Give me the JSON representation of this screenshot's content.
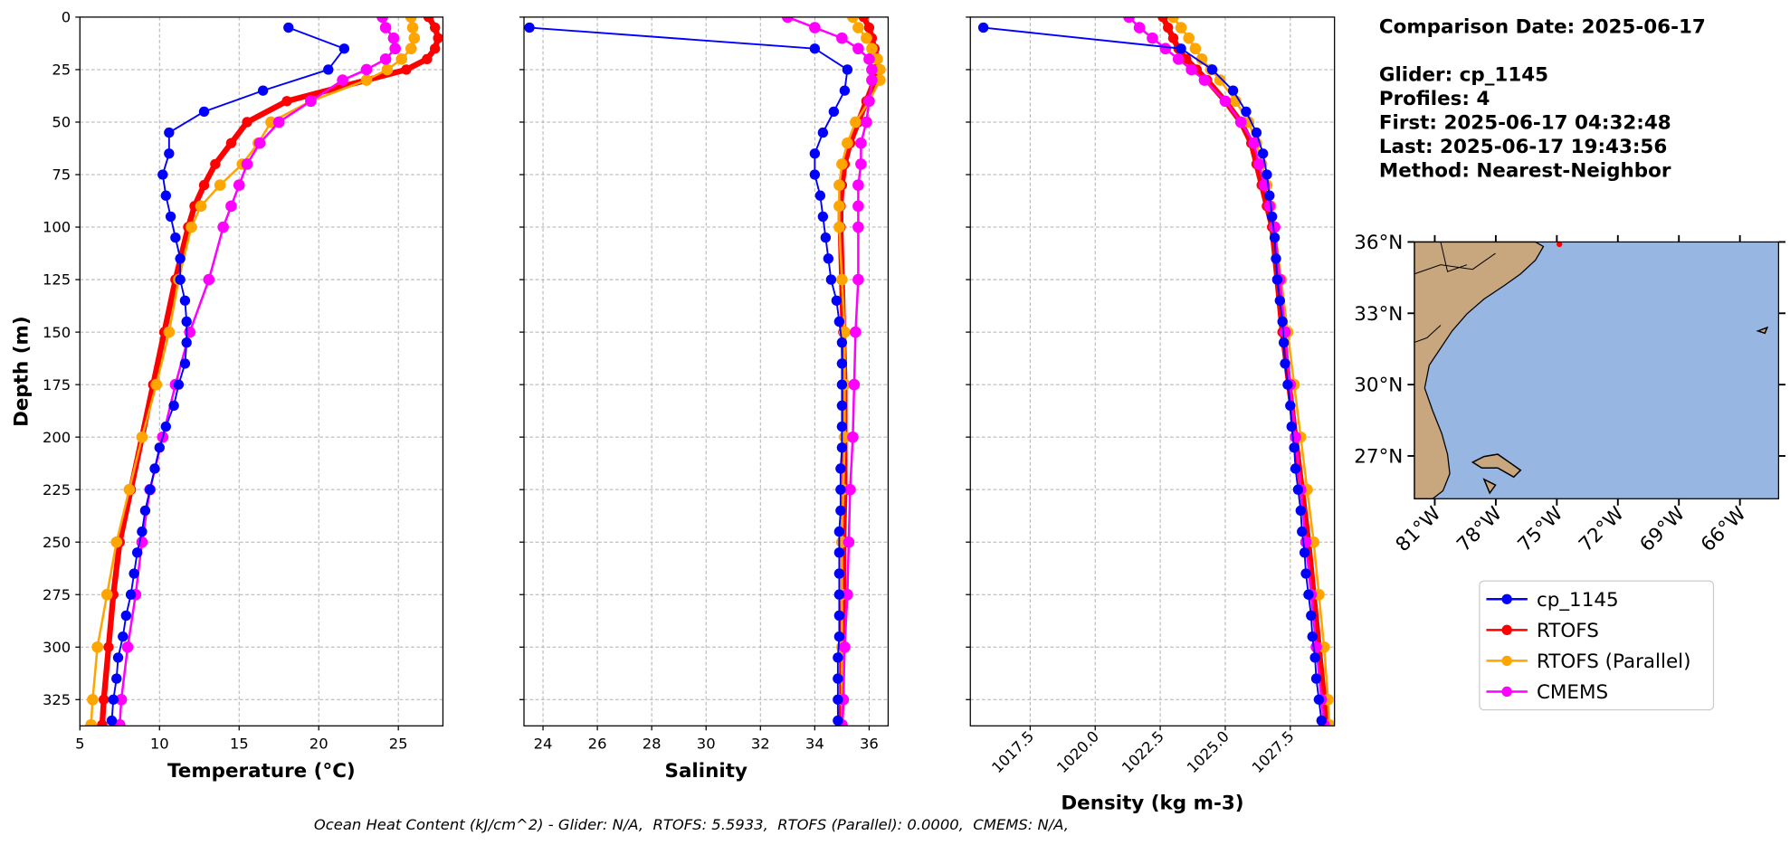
{
  "chart_data": [
    {
      "type": "line",
      "xlabel": "Temperature (°C)",
      "ylabel": "Depth (m)",
      "xlim": [
        5,
        27.8
      ],
      "xticks": [
        5,
        10,
        15,
        20,
        25
      ],
      "ylim": [
        337.5,
        0
      ],
      "yticks": [
        0,
        25,
        50,
        75,
        100,
        125,
        150,
        175,
        200,
        225,
        250,
        275,
        300,
        325
      ],
      "grid": true,
      "series": [
        {
          "name": "cp_1145",
          "color": "#0000ff",
          "depths": [
            5,
            15,
            25,
            35,
            45,
            55,
            65,
            75,
            85,
            95,
            105,
            115,
            125,
            135,
            145,
            155,
            165,
            175,
            185,
            195,
            205,
            215,
            225,
            235,
            245,
            255,
            265,
            275,
            285,
            295,
            305,
            315,
            325,
            335
          ],
          "values": [
            18.1,
            21.6,
            20.6,
            16.5,
            12.8,
            10.6,
            10.6,
            10.2,
            10.4,
            10.7,
            11.0,
            11.3,
            11.3,
            11.6,
            11.7,
            11.7,
            11.6,
            11.2,
            10.9,
            10.4,
            10.0,
            9.7,
            9.4,
            9.1,
            8.9,
            8.6,
            8.4,
            8.2,
            7.9,
            7.7,
            7.4,
            7.3,
            7.1,
            7.0
          ]
        },
        {
          "name": "RTOFS",
          "color": "#ff0000",
          "depths": [
            0,
            5,
            10,
            15,
            20,
            25,
            30,
            40,
            50,
            60,
            70,
            80,
            90,
            100,
            125,
            150,
            175,
            200,
            225,
            250,
            275,
            300,
            325,
            337
          ],
          "values": [
            26.9,
            27.3,
            27.5,
            27.3,
            26.8,
            25.5,
            23.0,
            18.0,
            15.5,
            14.5,
            13.5,
            12.8,
            12.2,
            11.8,
            11.0,
            10.3,
            9.6,
            8.9,
            8.2,
            7.5,
            7.1,
            6.8,
            6.5,
            6.4
          ]
        },
        {
          "name": "RTOFS (Parallel)",
          "color": "#ffa500",
          "depths": [
            0,
            5,
            10,
            15,
            20,
            25,
            30,
            40,
            50,
            60,
            70,
            80,
            90,
            100,
            125,
            150,
            175,
            200,
            225,
            250,
            275,
            300,
            325,
            337
          ],
          "values": [
            25.8,
            25.9,
            26.0,
            25.8,
            25.2,
            24.3,
            23.0,
            19.5,
            17.0,
            16.2,
            15.2,
            13.8,
            12.6,
            12.0,
            11.2,
            10.6,
            9.8,
            8.9,
            8.1,
            7.3,
            6.7,
            6.1,
            5.8,
            5.7
          ]
        },
        {
          "name": "CMEMS",
          "color": "#ff00ff",
          "depths": [
            0,
            5,
            10,
            15,
            20,
            25,
            30,
            40,
            50,
            60,
            70,
            80,
            90,
            100,
            125,
            150,
            175,
            200,
            225,
            250,
            275,
            300,
            325,
            337
          ],
          "values": [
            24.0,
            24.2,
            24.7,
            24.8,
            24.2,
            23.0,
            21.5,
            19.5,
            17.5,
            16.3,
            15.5,
            15.0,
            14.5,
            14.0,
            13.1,
            11.9,
            11.0,
            10.2,
            9.4,
            8.9,
            8.5,
            8.0,
            7.6,
            7.5
          ]
        }
      ]
    },
    {
      "type": "line",
      "xlabel": "Salinity",
      "xlim": [
        23.3,
        36.7
      ],
      "xticks": [
        24,
        26,
        28,
        30,
        32,
        34,
        36
      ],
      "series": [
        {
          "color": "#0000ff",
          "depths": [
            5,
            15,
            25,
            35,
            45,
            55,
            65,
            75,
            85,
            95,
            105,
            115,
            125,
            135,
            145,
            155,
            165,
            175,
            185,
            195,
            205,
            215,
            225,
            235,
            245,
            255,
            265,
            275,
            285,
            295,
            305,
            315,
            325,
            335
          ],
          "values": [
            23.5,
            34.0,
            35.2,
            35.1,
            34.7,
            34.3,
            34.0,
            34.0,
            34.2,
            34.3,
            34.4,
            34.5,
            34.6,
            34.8,
            34.9,
            35.0,
            35.0,
            35.0,
            35.0,
            35.0,
            35.0,
            34.95,
            34.95,
            34.95,
            34.9,
            34.9,
            34.9,
            34.9,
            34.9,
            34.9,
            34.85,
            34.85,
            34.85,
            34.85
          ]
        },
        {
          "color": "#ff0000",
          "depths": [
            0,
            5,
            10,
            15,
            20,
            25,
            30,
            40,
            50,
            60,
            70,
            80,
            90,
            100,
            125,
            150,
            175,
            200,
            225,
            250,
            275,
            300,
            325,
            337
          ],
          "values": [
            35.8,
            36.0,
            36.1,
            36.2,
            36.3,
            36.3,
            36.2,
            35.9,
            35.6,
            35.3,
            35.1,
            35.0,
            34.95,
            34.95,
            35.0,
            35.05,
            35.1,
            35.1,
            35.1,
            35.05,
            35.05,
            35.0,
            35.0,
            34.95
          ]
        },
        {
          "color": "#ffa500",
          "depths": [
            0,
            5,
            10,
            15,
            20,
            25,
            30,
            40,
            50,
            60,
            70,
            80,
            90,
            100,
            125,
            150,
            175,
            200,
            225,
            250,
            275,
            300,
            325,
            337
          ],
          "values": [
            35.4,
            35.6,
            35.9,
            36.1,
            36.3,
            36.4,
            36.4,
            36.0,
            35.5,
            35.2,
            35.0,
            34.9,
            34.9,
            34.9,
            35.0,
            35.1,
            35.1,
            35.1,
            35.05,
            35.0,
            35.0,
            35.0,
            35.0,
            35.0
          ]
        },
        {
          "color": "#ff00ff",
          "depths": [
            0,
            5,
            10,
            15,
            20,
            25,
            30,
            40,
            50,
            60,
            70,
            80,
            90,
            100,
            125,
            150,
            175,
            200,
            225,
            250,
            275,
            300,
            325,
            337
          ],
          "values": [
            33.0,
            34.0,
            35.0,
            35.6,
            36.0,
            36.1,
            36.1,
            36.0,
            35.9,
            35.7,
            35.7,
            35.6,
            35.6,
            35.6,
            35.6,
            35.5,
            35.45,
            35.4,
            35.3,
            35.25,
            35.2,
            35.1,
            35.05,
            35.0
          ]
        }
      ]
    },
    {
      "type": "line",
      "xlabel": "Density (kg m-3)",
      "xlim": [
        1015.2,
        1029.2
      ],
      "xticks": [
        1017.5,
        {
          "value": 1020,
          "label": "1020.0"
        },
        1022.5,
        {
          "value": 1025,
          "label": "1025.0"
        },
        1027.5
      ],
      "series": [
        {
          "color": "#0000ff",
          "depths": [
            5,
            15,
            25,
            35,
            45,
            55,
            65,
            75,
            85,
            95,
            105,
            115,
            125,
            135,
            145,
            155,
            165,
            175,
            185,
            195,
            205,
            215,
            225,
            235,
            245,
            255,
            265,
            275,
            285,
            295,
            305,
            315,
            325,
            335
          ],
          "values": [
            1015.7,
            1023.3,
            1024.5,
            1025.3,
            1025.8,
            1026.2,
            1026.45,
            1026.6,
            1026.7,
            1026.8,
            1026.9,
            1026.95,
            1027.0,
            1027.1,
            1027.2,
            1027.25,
            1027.3,
            1027.4,
            1027.5,
            1027.55,
            1027.65,
            1027.7,
            1027.8,
            1027.9,
            1027.95,
            1028.05,
            1028.1,
            1028.2,
            1028.3,
            1028.35,
            1028.45,
            1028.5,
            1028.6,
            1028.7
          ]
        },
        {
          "color": "#ff0000",
          "depths": [
            0,
            5,
            10,
            15,
            20,
            25,
            30,
            40,
            50,
            60,
            70,
            80,
            90,
            100,
            125,
            150,
            175,
            200,
            225,
            250,
            275,
            300,
            325,
            337
          ],
          "values": [
            1022.6,
            1022.8,
            1023.0,
            1023.2,
            1023.5,
            1023.9,
            1024.3,
            1025.0,
            1025.6,
            1026.0,
            1026.2,
            1026.4,
            1026.6,
            1026.8,
            1027.0,
            1027.2,
            1027.45,
            1027.7,
            1027.95,
            1028.2,
            1028.4,
            1028.6,
            1028.8,
            1028.9
          ]
        },
        {
          "color": "#ffa500",
          "depths": [
            0,
            5,
            10,
            15,
            20,
            25,
            30,
            40,
            50,
            60,
            70,
            80,
            90,
            100,
            125,
            150,
            175,
            200,
            225,
            250,
            275,
            300,
            325,
            337
          ],
          "values": [
            1023.0,
            1023.3,
            1023.6,
            1023.85,
            1024.1,
            1024.45,
            1024.8,
            1025.4,
            1025.9,
            1026.2,
            1026.4,
            1026.6,
            1026.75,
            1026.9,
            1027.15,
            1027.4,
            1027.65,
            1027.9,
            1028.15,
            1028.4,
            1028.6,
            1028.8,
            1028.95,
            1029.0
          ]
        },
        {
          "color": "#ff00ff",
          "depths": [
            0,
            5,
            10,
            15,
            20,
            25,
            30,
            40,
            50,
            60,
            70,
            80,
            90,
            100,
            125,
            150,
            175,
            200,
            225,
            250,
            275,
            300,
            325,
            337
          ],
          "values": [
            1021.3,
            1021.7,
            1022.2,
            1022.7,
            1023.2,
            1023.7,
            1024.2,
            1025.0,
            1025.6,
            1026.1,
            1026.3,
            1026.5,
            1026.7,
            1026.9,
            1027.1,
            1027.3,
            1027.5,
            1027.7,
            1027.9,
            1028.1,
            1028.3,
            1028.5,
            1028.7,
            1028.8
          ]
        }
      ]
    }
  ],
  "info": {
    "date": "Comparison Date: 2025-06-17",
    "lines": [
      "Glider: cp_1145",
      "Profiles: 4",
      "First: 2025-06-17 04:32:48",
      "Last: 2025-06-17 19:43:56",
      "Method: Nearest-Neighbor"
    ]
  },
  "map": {
    "xlim": [
      -82,
      -64.1
    ],
    "ylim": [
      25.2,
      36
    ],
    "xticks": [
      {
        "value": -81,
        "label": "81°W"
      },
      {
        "value": -78,
        "label": "78°W"
      },
      {
        "value": -75,
        "label": "75°W"
      },
      {
        "value": -72,
        "label": "72°W"
      },
      {
        "value": -69,
        "label": "69°W"
      },
      {
        "value": -66,
        "label": "66°W"
      }
    ],
    "yticks": [
      {
        "value": 36,
        "label": "36°N"
      },
      {
        "value": 33,
        "label": "33°N"
      },
      {
        "value": 30,
        "label": "30°N"
      },
      {
        "value": 27,
        "label": "27°N"
      }
    ]
  },
  "footer": "Ocean Heat Content (kJ/cm^2) - Glider: N/A,  RTOFS: 5.5933,  RTOFS (Parallel): 0.0000,  CMEMS: N/A,"
}
